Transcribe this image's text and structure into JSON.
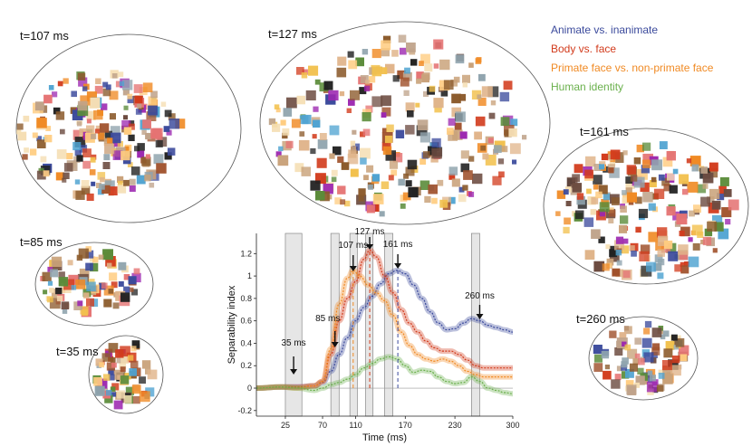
{
  "legend": [
    {
      "label": "Animate vs. inanimate",
      "color": "#3b4a9c"
    },
    {
      "label": "Body vs. face",
      "color": "#d23b1c"
    },
    {
      "label": "Primate face vs. non-primate face",
      "color": "#f08a24"
    },
    {
      "label": "Human identity",
      "color": "#6ab04c"
    }
  ],
  "clusters": [
    {
      "label": "t=107 ms",
      "density": "high"
    },
    {
      "label": "t=127 ms",
      "density": "high"
    },
    {
      "label": "t=161 ms",
      "density": "high"
    },
    {
      "label": "t=85 ms",
      "density": "medium"
    },
    {
      "label": "t=35 ms",
      "density": "medium"
    },
    {
      "label": "t=260 ms",
      "density": "medium"
    }
  ],
  "chart_data": {
    "type": "line",
    "xlabel": "Time (ms)",
    "ylabel": "Separability index",
    "xlim": [
      -10,
      300
    ],
    "ylim": [
      -0.25,
      1.38
    ],
    "xticks": [
      25,
      70,
      110,
      170,
      230,
      300
    ],
    "yticks": [
      -0.2,
      0,
      0.2,
      0.4,
      0.6,
      0.8,
      1,
      1.2
    ],
    "shaded_windows": [
      [
        25,
        45
      ],
      [
        80,
        90
      ],
      [
        103,
        112
      ],
      [
        122,
        131
      ],
      [
        145,
        155
      ],
      [
        250,
        260
      ]
    ],
    "annotations": [
      {
        "label": "35 ms",
        "x": 35
      },
      {
        "label": "85 ms",
        "x": 85
      },
      {
        "label": "107 ms",
        "x": 107
      },
      {
        "label": "127 ms",
        "x": 127
      },
      {
        "label": "161 ms",
        "x": 161
      },
      {
        "label": "260 ms",
        "x": 260
      }
    ],
    "series": [
      {
        "color": "#3b4a9c",
        "peak_x": 161,
        "x": [
          -10,
          20,
          40,
          60,
          70,
          80,
          90,
          100,
          110,
          120,
          130,
          140,
          150,
          160,
          170,
          180,
          190,
          200,
          210,
          220,
          230,
          240,
          250,
          260,
          270,
          280,
          290,
          300
        ],
        "y": [
          0.0,
          0.01,
          0.01,
          0.02,
          0.05,
          0.15,
          0.3,
          0.45,
          0.6,
          0.72,
          0.82,
          0.93,
          1.02,
          1.05,
          1.02,
          0.92,
          0.8,
          0.68,
          0.58,
          0.52,
          0.53,
          0.58,
          0.62,
          0.6,
          0.56,
          0.54,
          0.52,
          0.5
        ]
      },
      {
        "color": "#d23b1c",
        "peak_x": 127,
        "x": [
          -10,
          20,
          40,
          60,
          70,
          80,
          90,
          100,
          110,
          120,
          127,
          135,
          145,
          155,
          165,
          175,
          185,
          195,
          205,
          215,
          225,
          235,
          245,
          255,
          265,
          275,
          285,
          300
        ],
        "y": [
          0.0,
          0.01,
          0.01,
          0.02,
          0.06,
          0.3,
          0.6,
          0.8,
          0.95,
          1.15,
          1.23,
          1.17,
          1.0,
          0.85,
          0.7,
          0.58,
          0.5,
          0.42,
          0.36,
          0.33,
          0.33,
          0.3,
          0.25,
          0.2,
          0.18,
          0.18,
          0.18,
          0.18
        ]
      },
      {
        "color": "#f08a24",
        "peak_x": 107,
        "x": [
          -10,
          20,
          40,
          60,
          70,
          80,
          90,
          100,
          107,
          115,
          125,
          135,
          145,
          155,
          165,
          175,
          185,
          195,
          205,
          215,
          225,
          235,
          245,
          255,
          265,
          275,
          285,
          300
        ],
        "y": [
          0.0,
          0.01,
          0.0,
          0.02,
          0.06,
          0.35,
          0.75,
          0.98,
          1.05,
          1.0,
          0.92,
          0.85,
          0.78,
          0.65,
          0.5,
          0.38,
          0.3,
          0.26,
          0.24,
          0.26,
          0.24,
          0.2,
          0.15,
          0.12,
          0.1,
          0.1,
          0.1,
          0.1
        ]
      },
      {
        "color": "#6ab04c",
        "peak_x": 150,
        "x": [
          -10,
          20,
          40,
          60,
          70,
          80,
          90,
          100,
          110,
          120,
          130,
          140,
          150,
          160,
          170,
          180,
          190,
          200,
          210,
          220,
          230,
          240,
          250,
          260,
          270,
          280,
          290,
          300
        ],
        "y": [
          0.0,
          0.01,
          0.0,
          -0.02,
          0.0,
          0.03,
          0.05,
          0.08,
          0.12,
          0.18,
          0.22,
          0.26,
          0.28,
          0.26,
          0.2,
          0.14,
          0.16,
          0.15,
          0.1,
          0.06,
          0.04,
          0.05,
          0.1,
          0.06,
          0.0,
          -0.02,
          -0.04,
          -0.05
        ]
      }
    ]
  }
}
